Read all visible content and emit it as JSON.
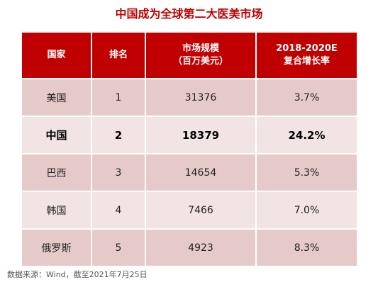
{
  "title": "中国成为全球第二大医美市场",
  "table": {
    "headers": [
      {
        "lines": [
          "国家"
        ]
      },
      {
        "lines": [
          "排名"
        ]
      },
      {
        "lines": [
          "市场规模",
          "（百万美元）"
        ]
      },
      {
        "lines": [
          "2018-2020E",
          "复合增长率"
        ]
      }
    ],
    "rows": [
      {
        "country": "美国",
        "rank": "1",
        "market_size": "31376",
        "cagr": "3.7%"
      },
      {
        "country": "中国",
        "rank": "2",
        "market_size": "18379",
        "cagr": "24.2%"
      },
      {
        "country": "巴西",
        "rank": "3",
        "market_size": "14654",
        "cagr": "5.3%"
      },
      {
        "country": "韩国",
        "rank": "4",
        "market_size": "7466",
        "cagr": "7.0%"
      },
      {
        "country": "俄罗斯",
        "rank": "5",
        "market_size": "4923",
        "cagr": "8.3%"
      }
    ]
  },
  "source": "数据来源：Wind，截至2021年7月25日",
  "colors": {
    "accent": "#c00000",
    "row_dark": "#e6c9c9",
    "row_light": "#f2e4e4"
  }
}
